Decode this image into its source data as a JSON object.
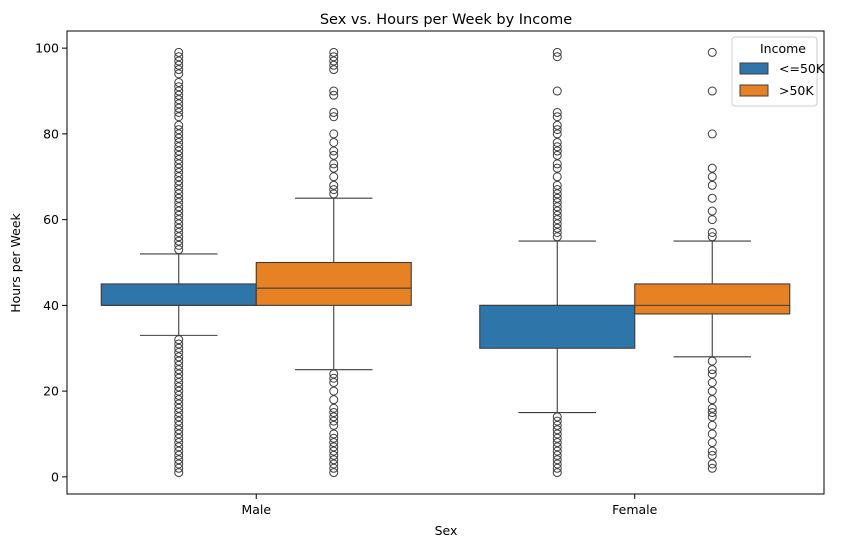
{
  "chart_data": {
    "type": "box",
    "title": "Sex vs. Hours per Week by Income",
    "xlabel": "Sex",
    "ylabel": "Hours per Week",
    "categories": [
      "Male",
      "Female"
    ],
    "ylim": [
      -4,
      104
    ],
    "yticks": [
      0,
      20,
      40,
      60,
      80,
      100
    ],
    "legend": {
      "title": "Income",
      "placement": "top-right"
    },
    "grid": false,
    "series": [
      {
        "name": "<=50K",
        "color": "#2e75aa",
        "boxes": [
          {
            "category": "Male",
            "whisker_low": 33,
            "q1": 40,
            "median": 40,
            "q3": 45,
            "whisker_high": 52,
            "outliers": [
              1,
              2,
              3,
              4,
              5,
              6,
              7,
              8,
              9,
              10,
              11,
              12,
              13,
              14,
              15,
              16,
              17,
              18,
              19,
              20,
              21,
              22,
              23,
              24,
              25,
              26,
              27,
              28,
              29,
              30,
              31,
              32,
              53,
              54,
              55,
              56,
              57,
              58,
              59,
              60,
              61,
              62,
              63,
              64,
              65,
              66,
              67,
              68,
              69,
              70,
              71,
              72,
              73,
              74,
              75,
              76,
              77,
              78,
              79,
              80,
              81,
              82,
              84,
              85,
              86,
              87,
              88,
              89,
              90,
              91,
              92,
              94,
              95,
              96,
              97,
              98,
              99
            ]
          },
          {
            "category": "Female",
            "whisker_low": 15,
            "q1": 30,
            "median": 40,
            "q3": 40,
            "whisker_high": 55,
            "outliers": [
              1,
              2,
              3,
              4,
              5,
              6,
              7,
              8,
              9,
              10,
              11,
              12,
              13,
              14,
              56,
              57,
              58,
              59,
              60,
              61,
              62,
              63,
              64,
              65,
              66,
              67,
              68,
              70,
              72,
              73,
              75,
              76,
              77,
              78,
              80,
              81,
              82,
              84,
              85,
              90,
              98,
              99
            ]
          }
        ]
      },
      {
        "name": ">50K",
        "color": "#e68124",
        "boxes": [
          {
            "category": "Male",
            "whisker_low": 25,
            "q1": 40,
            "median": 44,
            "q3": 50,
            "whisker_high": 65,
            "outliers": [
              1,
              2,
              3,
              4,
              5,
              6,
              7,
              8,
              9,
              10,
              12,
              13,
              14,
              15,
              16,
              18,
              20,
              22,
              23,
              24,
              66,
              67,
              68,
              70,
              72,
              73,
              75,
              76,
              78,
              80,
              84,
              85,
              89,
              90,
              95,
              96,
              97,
              98,
              99
            ]
          },
          {
            "category": "Female",
            "whisker_low": 28,
            "q1": 38,
            "median": 40,
            "q3": 45,
            "whisker_high": 55,
            "outliers": [
              2,
              3,
              5,
              6,
              8,
              10,
              12,
              14,
              15,
              16,
              18,
              20,
              22,
              24,
              25,
              27,
              56,
              57,
              60,
              62,
              65,
              68,
              70,
              72,
              80,
              90,
              99
            ]
          }
        ]
      }
    ]
  }
}
